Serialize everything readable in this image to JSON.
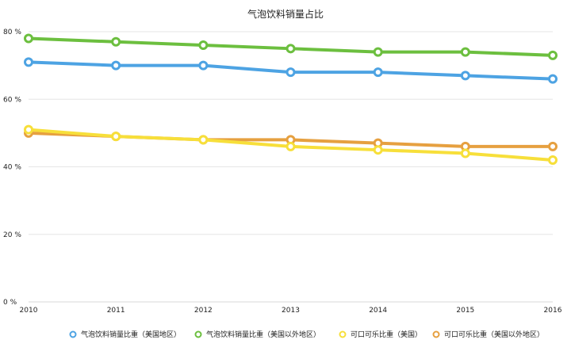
{
  "chart_data": {
    "type": "line",
    "title": "气泡饮料销量占比",
    "categories": [
      "2010",
      "2011",
      "2012",
      "2013",
      "2014",
      "2015",
      "2016"
    ],
    "y_ticks": [
      "0 %",
      "20 %",
      "40 %",
      "60 %",
      "80 %"
    ],
    "ylim": [
      0,
      80
    ],
    "grid": true,
    "legend_position": "bottom",
    "series": [
      {
        "name": "气泡饮料销量比重（美国地区）",
        "color": "#4da3e3",
        "values": [
          71,
          70,
          70,
          68,
          68,
          67,
          66
        ]
      },
      {
        "name": "气泡饮料销量比重（美国以外地区）",
        "color": "#6cbf3f",
        "values": [
          78,
          77,
          76,
          75,
          74,
          74,
          73
        ]
      },
      {
        "name": "可口可乐比重（美国）",
        "color": "#f7df3a",
        "values": [
          51,
          49,
          48,
          46,
          45,
          44,
          42
        ]
      },
      {
        "name": "可口可乐比重（美国以外地区）",
        "color": "#e6a040",
        "values": [
          50,
          49,
          48,
          48,
          47,
          46,
          46
        ]
      }
    ]
  }
}
